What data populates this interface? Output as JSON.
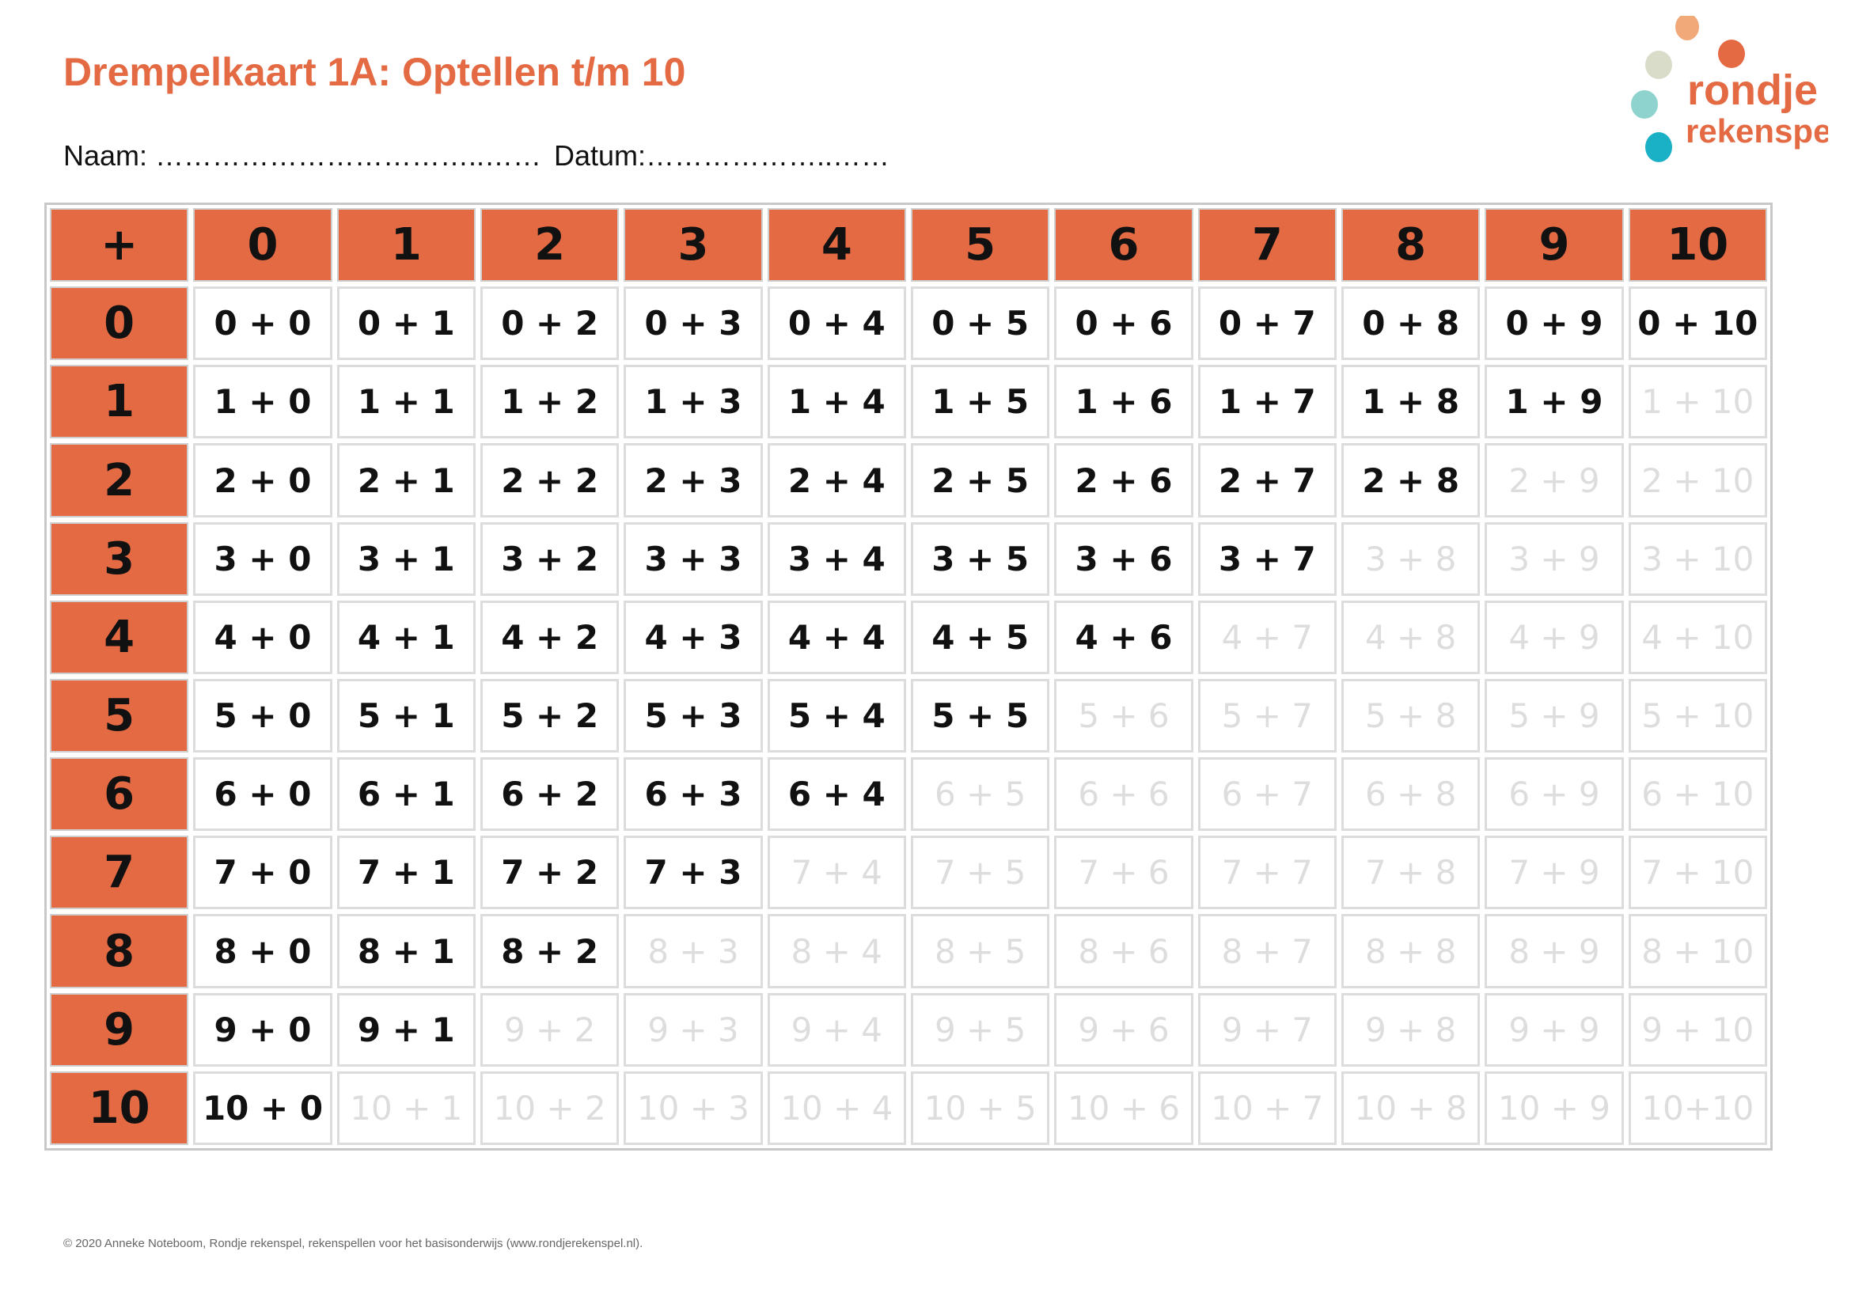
{
  "title": "Drempelkaart 1A: Optellen t/m 10",
  "fields": {
    "naam": "Naam: ……………………………..……",
    "datum": "Datum:………………..……"
  },
  "logo": {
    "line1": "rondje",
    "line2": "rekenspel",
    "colors": [
      "#e46a43",
      "#d8dcc8",
      "#8fd3cf",
      "#1ab0c6",
      "#f2a97a"
    ]
  },
  "table": {
    "corner": "+",
    "col_headers": [
      "0",
      "1",
      "2",
      "3",
      "4",
      "5",
      "6",
      "7",
      "8",
      "9",
      "10"
    ],
    "rows": [
      {
        "label": "0",
        "cells": [
          {
            "text": "0 + 0",
            "active": true
          },
          {
            "text": "0 + 1",
            "active": true
          },
          {
            "text": "0 + 2",
            "active": true
          },
          {
            "text": "0 + 3",
            "active": true
          },
          {
            "text": "0 + 4",
            "active": true
          },
          {
            "text": "0 + 5",
            "active": true
          },
          {
            "text": "0 + 6",
            "active": true
          },
          {
            "text": "0 + 7",
            "active": true
          },
          {
            "text": "0 + 8",
            "active": true
          },
          {
            "text": "0 + 9",
            "active": true
          },
          {
            "text": "0 + 10",
            "active": true
          }
        ]
      },
      {
        "label": "1",
        "cells": [
          {
            "text": "1 + 0",
            "active": true
          },
          {
            "text": "1 + 1",
            "active": true
          },
          {
            "text": "1 + 2",
            "active": true
          },
          {
            "text": "1 + 3",
            "active": true
          },
          {
            "text": "1 + 4",
            "active": true
          },
          {
            "text": "1 + 5",
            "active": true
          },
          {
            "text": "1 + 6",
            "active": true
          },
          {
            "text": "1 + 7",
            "active": true
          },
          {
            "text": "1 + 8",
            "active": true
          },
          {
            "text": "1 + 9",
            "active": true
          },
          {
            "text": "1 + 10",
            "active": false
          }
        ]
      },
      {
        "label": "2",
        "cells": [
          {
            "text": "2 + 0",
            "active": true
          },
          {
            "text": "2 + 1",
            "active": true
          },
          {
            "text": "2 + 2",
            "active": true
          },
          {
            "text": "2 + 3",
            "active": true
          },
          {
            "text": "2 + 4",
            "active": true
          },
          {
            "text": "2 + 5",
            "active": true
          },
          {
            "text": "2 + 6",
            "active": true
          },
          {
            "text": "2 + 7",
            "active": true
          },
          {
            "text": "2 + 8",
            "active": true
          },
          {
            "text": "2 + 9",
            "active": false
          },
          {
            "text": "2 + 10",
            "active": false
          }
        ]
      },
      {
        "label": "3",
        "cells": [
          {
            "text": "3 + 0",
            "active": true
          },
          {
            "text": "3 + 1",
            "active": true
          },
          {
            "text": "3 + 2",
            "active": true
          },
          {
            "text": "3 + 3",
            "active": true
          },
          {
            "text": "3 + 4",
            "active": true
          },
          {
            "text": "3 + 5",
            "active": true
          },
          {
            "text": "3 + 6",
            "active": true
          },
          {
            "text": "3 + 7",
            "active": true
          },
          {
            "text": "3 + 8",
            "active": false
          },
          {
            "text": "3 + 9",
            "active": false
          },
          {
            "text": "3 + 10",
            "active": false
          }
        ]
      },
      {
        "label": "4",
        "cells": [
          {
            "text": "4 + 0",
            "active": true
          },
          {
            "text": "4 + 1",
            "active": true
          },
          {
            "text": "4 + 2",
            "active": true
          },
          {
            "text": "4 + 3",
            "active": true
          },
          {
            "text": "4 + 4",
            "active": true
          },
          {
            "text": "4 + 5",
            "active": true
          },
          {
            "text": "4 + 6",
            "active": true
          },
          {
            "text": "4 + 7",
            "active": false
          },
          {
            "text": "4 + 8",
            "active": false
          },
          {
            "text": "4 + 9",
            "active": false
          },
          {
            "text": "4 + 10",
            "active": false
          }
        ]
      },
      {
        "label": "5",
        "cells": [
          {
            "text": "5 + 0",
            "active": true
          },
          {
            "text": "5 + 1",
            "active": true
          },
          {
            "text": "5 + 2",
            "active": true
          },
          {
            "text": "5 + 3",
            "active": true
          },
          {
            "text": "5 + 4",
            "active": true
          },
          {
            "text": "5 + 5",
            "active": true
          },
          {
            "text": "5 + 6",
            "active": false
          },
          {
            "text": "5 + 7",
            "active": false
          },
          {
            "text": "5 + 8",
            "active": false
          },
          {
            "text": "5 + 9",
            "active": false
          },
          {
            "text": "5 + 10",
            "active": false
          }
        ]
      },
      {
        "label": "6",
        "cells": [
          {
            "text": "6 + 0",
            "active": true
          },
          {
            "text": "6 + 1",
            "active": true
          },
          {
            "text": "6 + 2",
            "active": true
          },
          {
            "text": "6 + 3",
            "active": true
          },
          {
            "text": "6 + 4",
            "active": true
          },
          {
            "text": "6 + 5",
            "active": false
          },
          {
            "text": "6 + 6",
            "active": false
          },
          {
            "text": "6 + 7",
            "active": false
          },
          {
            "text": "6 + 8",
            "active": false
          },
          {
            "text": "6 + 9",
            "active": false
          },
          {
            "text": "6 + 10",
            "active": false
          }
        ]
      },
      {
        "label": "7",
        "cells": [
          {
            "text": "7 + 0",
            "active": true
          },
          {
            "text": "7 + 1",
            "active": true
          },
          {
            "text": "7 + 2",
            "active": true
          },
          {
            "text": "7 + 3",
            "active": true
          },
          {
            "text": "7 + 4",
            "active": false
          },
          {
            "text": "7 + 5",
            "active": false
          },
          {
            "text": "7 + 6",
            "active": false
          },
          {
            "text": "7 + 7",
            "active": false
          },
          {
            "text": "7 + 8",
            "active": false
          },
          {
            "text": "7 + 9",
            "active": false
          },
          {
            "text": "7 + 10",
            "active": false
          }
        ]
      },
      {
        "label": "8",
        "cells": [
          {
            "text": "8 + 0",
            "active": true
          },
          {
            "text": "8 + 1",
            "active": true
          },
          {
            "text": "8 + 2",
            "active": true
          },
          {
            "text": "8 + 3",
            "active": false
          },
          {
            "text": "8 + 4",
            "active": false
          },
          {
            "text": "8 + 5",
            "active": false
          },
          {
            "text": "8 + 6",
            "active": false
          },
          {
            "text": "8 + 7",
            "active": false
          },
          {
            "text": "8 + 8",
            "active": false
          },
          {
            "text": "8 + 9",
            "active": false
          },
          {
            "text": "8 + 10",
            "active": false
          }
        ]
      },
      {
        "label": "9",
        "cells": [
          {
            "text": "9 + 0",
            "active": true
          },
          {
            "text": "9 + 1",
            "active": true
          },
          {
            "text": "9 + 2",
            "active": false
          },
          {
            "text": "9 + 3",
            "active": false
          },
          {
            "text": "9 + 4",
            "active": false
          },
          {
            "text": "9 + 5",
            "active": false
          },
          {
            "text": "9 + 6",
            "active": false
          },
          {
            "text": "9 + 7",
            "active": false
          },
          {
            "text": "9 + 8",
            "active": false
          },
          {
            "text": "9 + 9",
            "active": false
          },
          {
            "text": "9 + 10",
            "active": false
          }
        ]
      },
      {
        "label": "10",
        "cells": [
          {
            "text": "10 + 0",
            "active": true
          },
          {
            "text": "10 + 1",
            "active": false
          },
          {
            "text": "10 + 2",
            "active": false
          },
          {
            "text": "10 + 3",
            "active": false
          },
          {
            "text": "10 + 4",
            "active": false
          },
          {
            "text": "10 + 5",
            "active": false
          },
          {
            "text": "10 + 6",
            "active": false
          },
          {
            "text": "10 + 7",
            "active": false
          },
          {
            "text": "10 + 8",
            "active": false
          },
          {
            "text": "10 + 9",
            "active": false
          },
          {
            "text": "10+10",
            "active": false
          }
        ]
      }
    ]
  },
  "footer": "© 2020 Anneke Noteboom, Rondje rekenspel, rekenspellen voor het basisonderwijs (www.rondjerekenspel.nl).",
  "colors": {
    "accent": "#e46a43",
    "active_text": "#111111",
    "inactive_text": "#dddddd",
    "cell_border": "#dcdcdc"
  }
}
